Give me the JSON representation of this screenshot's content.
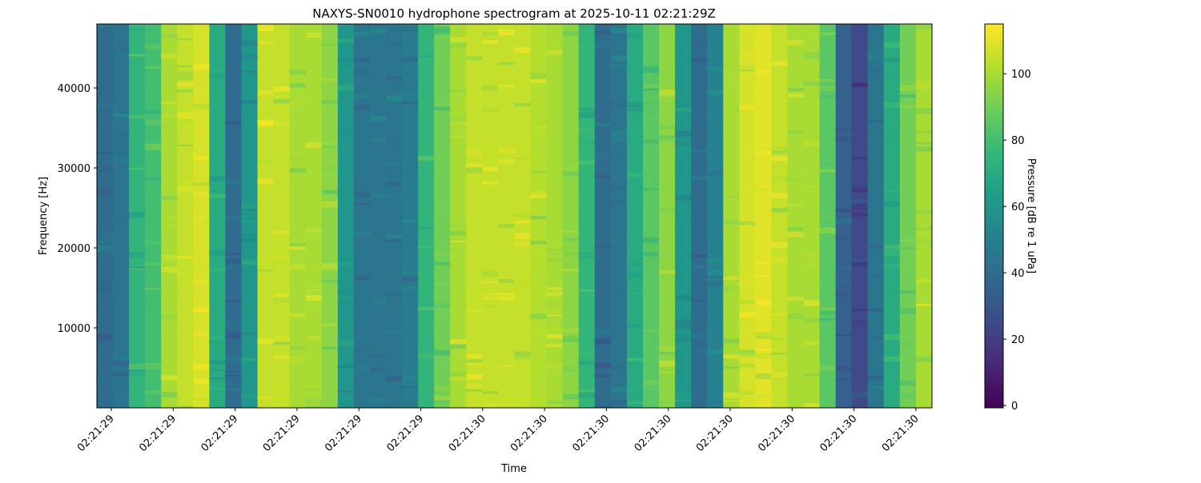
{
  "chart_data": {
    "type": "heatmap",
    "title": "NAXYS-SN0010 hydrophone spectrogram at 2025-10-11 02:21:29Z",
    "xlabel": "Time",
    "ylabel": "Frequency [Hz]",
    "colorbar_label": "Pressure [dB re 1 uPa]",
    "colormap": "viridis",
    "ylim": [
      0,
      48000
    ],
    "yticks": [
      10000,
      20000,
      30000,
      40000
    ],
    "xtick_labels": [
      "02:21:29",
      "02:21:29",
      "02:21:29",
      "02:21:29",
      "02:21:29",
      "02:21:29",
      "02:21:30",
      "02:21:30",
      "02:21:30",
      "02:21:30",
      "02:21:30",
      "02:21:30",
      "02:21:30",
      "02:21:30"
    ],
    "clim": [
      -0.7,
      115
    ],
    "colorbar_ticks": [
      0,
      20,
      40,
      60,
      80,
      100
    ],
    "time_bin_levels_db": [
      40,
      45,
      75,
      80,
      100,
      105,
      108,
      70,
      40,
      60,
      105,
      105,
      100,
      100,
      95,
      60,
      45,
      45,
      45,
      48,
      75,
      90,
      100,
      105,
      105,
      105,
      105,
      102,
      100,
      95,
      75,
      40,
      45,
      70,
      85,
      95,
      60,
      40,
      50,
      100,
      108,
      110,
      105,
      100,
      100,
      85,
      35,
      25,
      45,
      70,
      90,
      100
    ]
  }
}
